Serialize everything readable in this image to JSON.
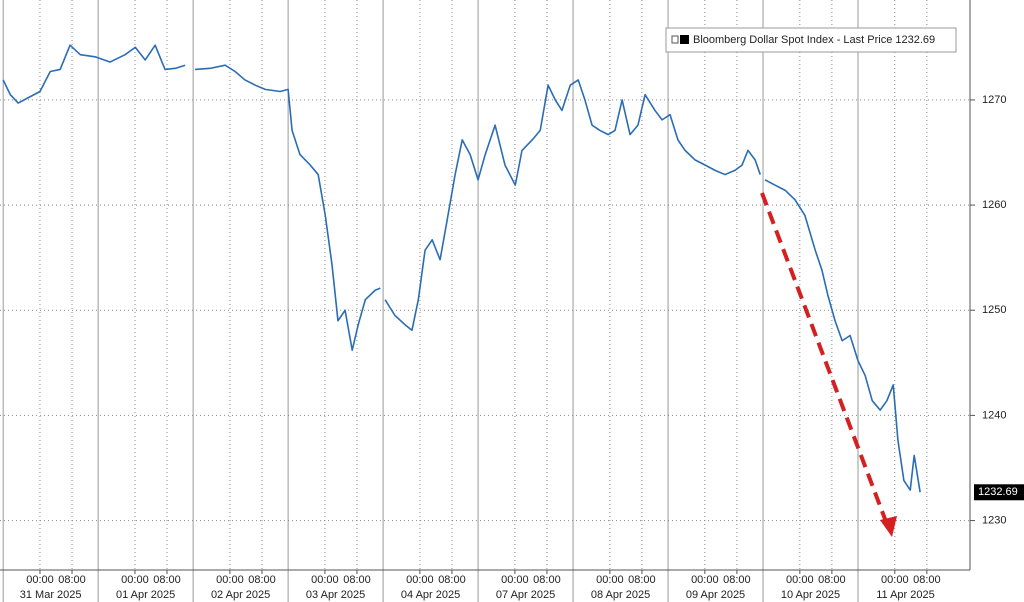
{
  "chart_data": {
    "type": "line",
    "series": [
      {
        "name": "Bloomberg Dollar Spot Index - Last Price",
        "color": "#2a6db5",
        "last_value_label": "1232.69",
        "x": [
          0,
          1.8,
          3.8,
          6.8,
          9.3,
          11.9,
          14.4,
          16.9,
          19.5,
          23.2,
          27,
          30.8,
          33.4,
          35.9,
          38.4,
          40.9,
          43.5,
          46,
          null,
          48.5,
          52.3,
          56.1,
          58.6,
          61.1,
          63.7,
          66.2,
          70,
          72,
          73,
          75,
          77.6,
          79.6,
          81.4,
          83.1,
          84.6,
          86.4,
          88.2,
          89.7,
          91.5,
          94,
          95.3,
          null,
          96.5,
          99,
          101.6,
          103.3,
          104.9,
          106.6,
          108.4,
          110.4,
          112.2,
          114.2,
          116,
          118,
          120,
          121.8,
          124.3,
          126.8,
          129.4,
          131.1,
          133.7,
          135.7,
          137.7,
          139.5,
          141.2,
          143.3,
          145.3,
          147,
          148.8,
          150.8,
          152.9,
          154.6,
          156.4,
          158.4,
          160.4,
          162.2,
          164.7,
          166.5,
          168.5,
          170.5,
          172.3,
          174.8,
          177.4,
          179.9,
          182.4,
          184.9,
          186.7,
          188.2,
          190,
          191.3,
          null,
          192.5,
          195,
          197.6,
          200.1,
          202.6,
          205.2,
          206.9,
          208.4,
          210.2,
          212,
          214,
          216,
          217.8,
          219.6,
          221.6,
          223.3,
          224.9,
          226.1,
          227.6,
          229.2,
          230.2,
          231.7
        ],
        "values": [
          1271.9,
          1270.5,
          1269.7,
          1270.3,
          1270.8,
          1272.7,
          1272.9,
          1275.2,
          1274.3,
          1274.1,
          1273.6,
          1274.3,
          1275.0,
          1273.8,
          1275.2,
          1272.9,
          1273.0,
          1273.3,
          null,
          1272.9,
          1273.0,
          1273.3,
          1272.7,
          1271.9,
          1271.4,
          1271.0,
          1270.8,
          1271.0,
          1267.1,
          1264.8,
          1263.8,
          1262.9,
          1259.0,
          1254.3,
          1249.0,
          1250.0,
          1246.2,
          1248.6,
          1251.0,
          1251.9,
          1252.1,
          null,
          1251.0,
          1249.5,
          1248.6,
          1248.1,
          1251.0,
          1255.7,
          1256.7,
          1254.8,
          1258.6,
          1262.9,
          1266.2,
          1264.8,
          1262.4,
          1264.8,
          1267.6,
          1263.8,
          1261.9,
          1265.2,
          1266.2,
          1267.1,
          1271.4,
          1270.0,
          1269.0,
          1271.4,
          1271.9,
          1270.0,
          1267.6,
          1267.1,
          1266.7,
          1267.1,
          1270.0,
          1266.7,
          1267.6,
          1270.5,
          1269.0,
          1268.1,
          1268.6,
          1266.2,
          1265.2,
          1264.3,
          1263.8,
          1263.3,
          1262.9,
          1263.3,
          1263.8,
          1265.2,
          1264.3,
          1262.9,
          null,
          1262.4,
          1261.9,
          1261.4,
          1260.5,
          1259.0,
          1255.7,
          1253.8,
          1251.4,
          1249.0,
          1247.1,
          1247.6,
          1245.2,
          1243.8,
          1241.4,
          1240.5,
          1241.4,
          1242.9,
          1237.6,
          1233.8,
          1232.9,
          1236.2,
          1232.69
        ]
      }
    ],
    "xlim": [
      -0.8,
      244.3
    ],
    "ylim": [
      1225.3,
      1279.5
    ],
    "yticks": [
      1230,
      1240,
      1250,
      1260,
      1270
    ],
    "xticks": [
      {
        "value": 9.3,
        "label": "00:00"
      },
      {
        "value": 17.4,
        "label": "08:00"
      },
      {
        "value": 33.3,
        "label": "00:00"
      },
      {
        "value": 41.4,
        "label": "08:00"
      },
      {
        "value": 57.3,
        "label": "00:00"
      },
      {
        "value": 65.4,
        "label": "08:00"
      },
      {
        "value": 81.3,
        "label": "00:00"
      },
      {
        "value": 89.4,
        "label": "08:00"
      },
      {
        "value": 105.3,
        "label": "00:00"
      },
      {
        "value": 113.4,
        "label": "08:00"
      },
      {
        "value": 129.3,
        "label": "00:00"
      },
      {
        "value": 137.4,
        "label": "08:00"
      },
      {
        "value": 153.3,
        "label": "00:00"
      },
      {
        "value": 161.4,
        "label": "08:00"
      },
      {
        "value": 177.3,
        "label": "00:00"
      },
      {
        "value": 185.4,
        "label": "08:00"
      },
      {
        "value": 201.3,
        "label": "00:00"
      },
      {
        "value": 209.4,
        "label": "08:00"
      },
      {
        "value": 225.3,
        "label": "00:00"
      },
      {
        "value": 233.4,
        "label": "08:00"
      }
    ],
    "day_labels": [
      "31 Mar 2025",
      "01 Apr 2025",
      "02 Apr 2025",
      "03 Apr 2025",
      "04 Apr 2025",
      "07 Apr 2025",
      "08 Apr 2025",
      "09 Apr 2025",
      "10 Apr 2025",
      "11 Apr 2025"
    ],
    "grid": true
  }
}
